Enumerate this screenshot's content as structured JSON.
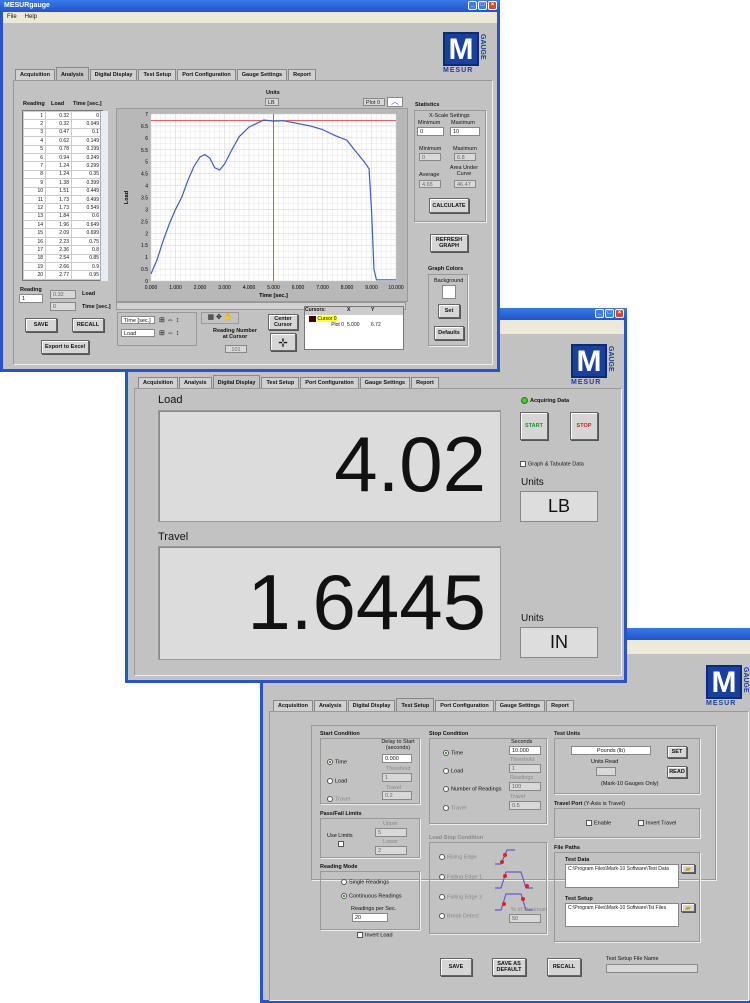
{
  "tabs": [
    "Acquisition",
    "Analysis",
    "Digital Display",
    "Test Setup",
    "Port Configuration",
    "Gauge Settings",
    "Report"
  ],
  "logo": {
    "letter": "M",
    "word": "MESUR",
    "side": "GAUGE",
    "color": "#1b3f9c"
  },
  "analysis_window": {
    "title": "MESURgauge",
    "menu": [
      "File",
      "Help"
    ],
    "active_tab": "Analysis",
    "table": {
      "headers": [
        "Reading",
        "Load",
        "Time [sec.]"
      ],
      "rows": [
        [
          "1",
          "0.32",
          "0"
        ],
        [
          "2",
          "0.32",
          "0.049"
        ],
        [
          "3",
          "0.47",
          "0.1"
        ],
        [
          "4",
          "0.62",
          "0.149"
        ],
        [
          "5",
          "0.78",
          "0.199"
        ],
        [
          "6",
          "0.94",
          "0.249"
        ],
        [
          "7",
          "1.24",
          "0.299"
        ],
        [
          "8",
          "1.24",
          "0.35"
        ],
        [
          "9",
          "1.38",
          "0.399"
        ],
        [
          "10",
          "1.51",
          "0.449"
        ],
        [
          "11",
          "1.73",
          "0.499"
        ],
        [
          "12",
          "1.73",
          "0.549"
        ],
        [
          "13",
          "1.84",
          "0.6"
        ],
        [
          "14",
          "1.96",
          "0.649"
        ],
        [
          "15",
          "2.09",
          "0.699"
        ],
        [
          "16",
          "2.23",
          "0.75"
        ],
        [
          "17",
          "2.36",
          "0.8"
        ],
        [
          "18",
          "2.54",
          "0.85"
        ],
        [
          "19",
          "2.66",
          "0.9"
        ],
        [
          "20",
          "2.77",
          "0.95"
        ]
      ]
    },
    "reading_label": "Reading",
    "reading_value": "1",
    "load_label": "Load",
    "load_value": "0.32",
    "time_label": "Time [sec.]",
    "time_value": "0",
    "save": "SAVE",
    "recall": "RECALL",
    "export": "Export to Excel",
    "units_label": "Units",
    "units_value": "LB",
    "plot_legend": "Plot 0",
    "x_field": "Time [sec.]",
    "y_field": "Load",
    "reading_at_cursor_label": "Reading Number at Cursor",
    "reading_at_cursor": "101",
    "center_cursor": "Center Cursor",
    "cursor_table": {
      "headers": [
        "Cursors:",
        "X",
        "Y"
      ],
      "cursor_name": "Cursor 0",
      "plot": "Plot 0",
      "x": "5.000",
      "y": "6.72"
    },
    "statistics": {
      "title": "Statistics",
      "xscale": "X-Scale Settings",
      "min_label": "Minimum",
      "max_label": "Maximum",
      "xmin": "0",
      "xmax": "10",
      "minimum": "0",
      "maximum": "6.8",
      "average_label": "Average",
      "average": "4.65",
      "area_label": "Area Under Curve",
      "area": "46.47",
      "calculate": "CALCULATE"
    },
    "refresh": "REFRESH GRAPH",
    "graph_colors": "Graph Colors",
    "background": "Background",
    "set": "Set",
    "defaults": "Defaults"
  },
  "chart_data": {
    "type": "line",
    "xlabel": "Time [sec.]",
    "ylabel": "Load",
    "xlim": [
      0,
      10
    ],
    "ylim": [
      0,
      7
    ],
    "grid": true,
    "xticks": [
      "0.000",
      "1.000",
      "2.000",
      "3.000",
      "4.000",
      "5.000",
      "6.000",
      "7.000",
      "8.000",
      "9.000",
      "10.000"
    ],
    "yticks": [
      "0",
      "0.5",
      "1",
      "1.5",
      "2",
      "2.5",
      "3",
      "3.5",
      "4",
      "4.5",
      "5",
      "5.5",
      "6",
      "6.5",
      "7"
    ],
    "series": [
      {
        "color": "#3b5cc4",
        "x": [
          0,
          0.25,
          0.5,
          0.75,
          1,
          1.25,
          1.5,
          1.75,
          2,
          2.2,
          2.4,
          2.6,
          2.8,
          3,
          3.3,
          3.6,
          4,
          4.3,
          4.6,
          5,
          5.4,
          6,
          6.5,
          7,
          7.5,
          8,
          8.3,
          8.7,
          8.9,
          9,
          9.1,
          9.2,
          10
        ],
        "y": [
          0.3,
          0.9,
          1.7,
          2.4,
          3.0,
          3.5,
          4.2,
          4.8,
          5.2,
          5.3,
          5.15,
          4.75,
          4.65,
          4.9,
          5.5,
          6.05,
          6.45,
          6.6,
          6.75,
          6.7,
          6.72,
          6.6,
          6.5,
          6.35,
          6.1,
          5.9,
          5.5,
          5.0,
          4.7,
          3.0,
          0.5,
          0.05,
          0.05
        ]
      }
    ],
    "cursor": {
      "x": 5,
      "y": 6.72,
      "color": "#e03030"
    }
  },
  "display_window": {
    "active_tab": "Digital Display",
    "load_label": "Load",
    "load_value": "4.02",
    "travel_label": "Travel",
    "travel_value": "1.6445",
    "acquiring": "Acquiring Data",
    "start": "START",
    "stop": "STOP",
    "graph_tabulate": "Graph & Tabulate Data",
    "units_label": "Units",
    "load_units": "LB",
    "travel_units": "IN",
    "led_color": "#44cc22"
  },
  "setup_window": {
    "active_tab": "Test Setup",
    "start": {
      "title": "Start Condition",
      "options": [
        "Time",
        "Load",
        "Travel"
      ],
      "selected": "Time",
      "delay_label": "Delay to Start (seconds)",
      "delay": "0.000",
      "threshold_label": "Threshold",
      "threshold": "1",
      "travel_label": "Travel",
      "travel": "0.2"
    },
    "passfail": {
      "title": "Pass/Fail Limits",
      "use": "Use Limits",
      "upper_label": "Upper",
      "upper": "5",
      "lower_label": "Lower",
      "lower": "2"
    },
    "mode": {
      "title": "Reading Mode",
      "options": [
        "Single Readings",
        "Continuous Readings"
      ],
      "selected": "Continuous Readings",
      "rate_label": "Readings per Sec.",
      "rate": "20",
      "invert": "Invert Load"
    },
    "stop": {
      "title": "Stop Condition",
      "options": [
        "Time",
        "Load",
        "Number of Readings",
        "Travel"
      ],
      "selected": "Time",
      "seconds_label": "Seconds",
      "seconds": "10.000",
      "threshold_label": "Threshold",
      "threshold": "1",
      "readings_label": "Readings",
      "readings": "100",
      "travel_label": "Travel",
      "travel": "0.5"
    },
    "loadstop": {
      "title": "Load Stop Condition",
      "options": [
        "Rising Edge",
        "Falling Edge 1",
        "Falling Edge 2",
        "Break Detect"
      ],
      "pct_label": "% of Maximum",
      "pct": "50"
    },
    "units": {
      "title": "Test Units",
      "value": "Pounds (lb)",
      "set": "SET",
      "read": "READ",
      "read_label": "Units Read",
      "note": "(Mark-10 Gauges Only)"
    },
    "travel": {
      "title": "Travel Port",
      "note": "(Y-Axis is Travel)",
      "enable": "Enable",
      "invert": "Invert Travel"
    },
    "paths": {
      "title": "File Paths",
      "data_label": "Test Data",
      "data": "C:\\Program Files\\Mark-10 Software\\Test Data",
      "setup_label": "Test Setup",
      "setup": "C:\\Program Files\\Mark-10 Software\\Tst Files"
    },
    "save": "SAVE",
    "save_default": "SAVE AS DEFAULT",
    "recall": "RECALL",
    "filename_label": "Test Setup File Name"
  }
}
